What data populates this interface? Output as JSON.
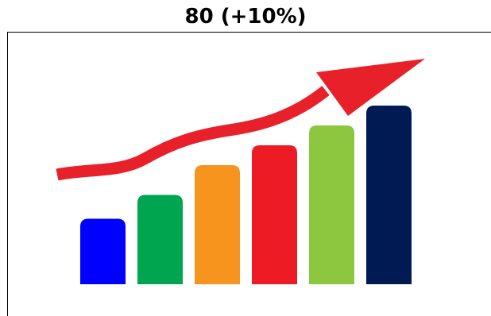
{
  "heading": {
    "text": "80 (+10%)"
  },
  "graphic": {
    "icon": "growth-bar-chart-with-rising-arrow",
    "bar_levels": [
      0.33,
      0.45,
      0.6,
      0.7,
      0.8,
      0.9
    ],
    "bar_colors": [
      "#0000ff",
      "#00a550",
      "#f7941d",
      "#ed1c24",
      "#8dc63f",
      "#001b54"
    ],
    "arrow_color": "#e8202a"
  }
}
